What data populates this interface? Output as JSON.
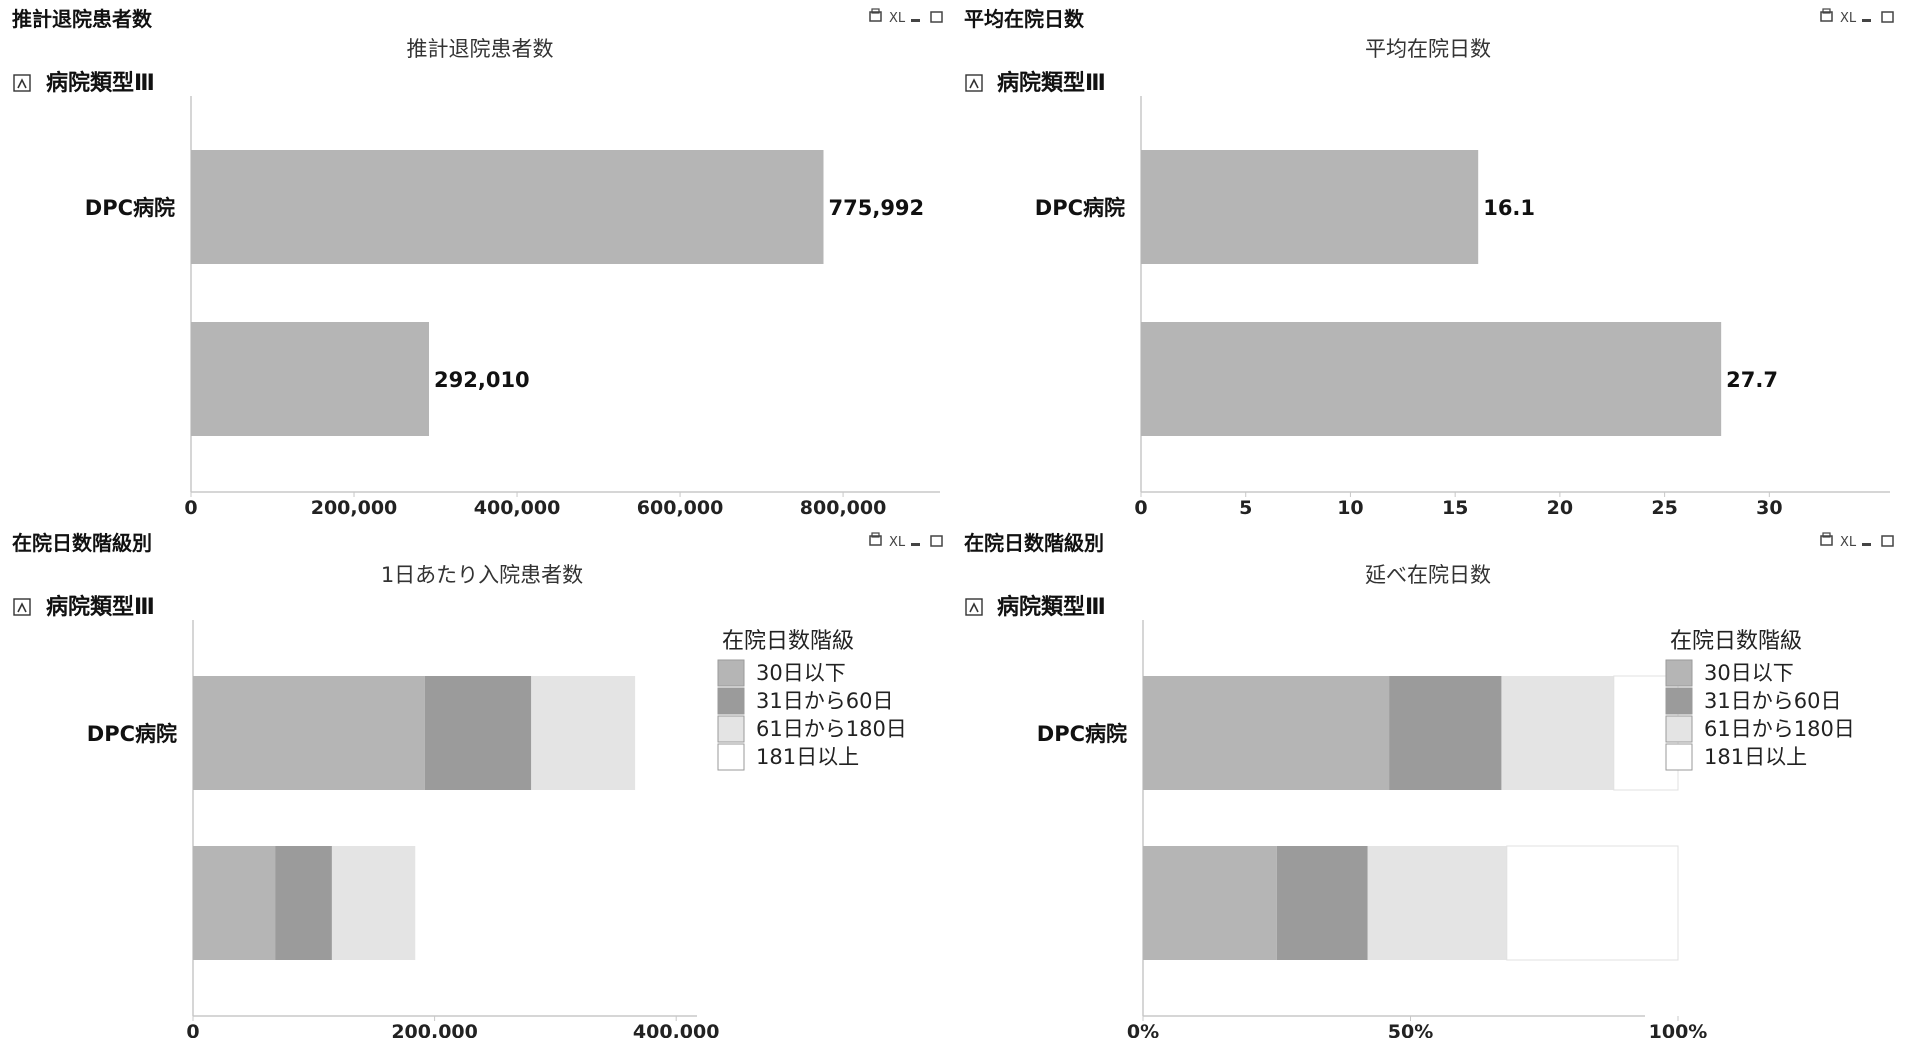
{
  "colors": {
    "bar": "#b5b5b5",
    "stack": [
      "#b5b5b5",
      "#9b9b9b",
      "#e4e4e4",
      "#ffffff"
    ],
    "axis": "#c8c8c8",
    "text": "#111111"
  },
  "panels": [
    {
      "id": "p1",
      "panel_title": "推計退院患者数",
      "chart_title": "推計退院患者数",
      "drill_label": "病院類型Ⅲ",
      "controls": [
        "XL"
      ],
      "icons": [
        "print-icon",
        "minimize-icon",
        "maximize-icon"
      ]
    },
    {
      "id": "p2",
      "panel_title": "平均在院日数",
      "chart_title": "平均在院日数",
      "drill_label": "病院類型Ⅲ",
      "controls": [
        "XL"
      ],
      "icons": [
        "print-icon",
        "minimize-icon",
        "maximize-icon"
      ]
    },
    {
      "id": "p3",
      "panel_title": "在院日数階級別",
      "chart_title": "1日あたり入院患者数",
      "drill_label": "病院類型Ⅲ",
      "controls": [
        "XL"
      ],
      "icons": [
        "print-icon",
        "minimize-icon",
        "maximize-icon"
      ]
    },
    {
      "id": "p4",
      "panel_title": "在院日数階級別",
      "chart_title": "延べ在院日数",
      "drill_label": "病院類型Ⅲ",
      "controls": [
        "XL"
      ],
      "icons": [
        "print-icon",
        "minimize-icon",
        "maximize-icon"
      ]
    }
  ],
  "chart_data": [
    {
      "type": "bar",
      "orientation": "horizontal",
      "title": "推計退院患者数",
      "categories": [
        "DPC病院",
        ""
      ],
      "values": [
        775992,
        292010
      ],
      "data_labels": [
        "775,992",
        "292,010"
      ],
      "xlim": [
        0,
        1060000
      ],
      "ticks": [
        0,
        200000,
        400000,
        600000,
        800000
      ],
      "tick_labels": [
        "0",
        "200,000",
        "400,000",
        "600,000",
        "800,000"
      ],
      "grid": false
    },
    {
      "type": "bar",
      "orientation": "horizontal",
      "title": "平均在院日数",
      "categories": [
        "DPC病院",
        ""
      ],
      "values": [
        16.1,
        27.7
      ],
      "data_labels": [
        "16.1",
        "27.7"
      ],
      "xlim": [
        0,
        36
      ],
      "ticks": [
        0,
        5,
        10,
        15,
        20,
        25,
        30
      ],
      "tick_labels": [
        "0",
        "5",
        "10",
        "15",
        "20",
        "25",
        "30"
      ],
      "grid": false
    },
    {
      "type": "bar",
      "orientation": "horizontal",
      "stacked": true,
      "title": "1日あたり入院患者数",
      "categories": [
        "DPC病院",
        ""
      ],
      "legend_title": "在院日数階級",
      "legend_position": "right",
      "series": [
        {
          "name": "30日以下",
          "values": [
            192000,
            68000
          ]
        },
        {
          "name": "31日から60日",
          "values": [
            88000,
            47000
          ]
        },
        {
          "name": "61日から180日",
          "values": [
            86000,
            69000
          ]
        },
        {
          "name": "181日以上",
          "values": [
            0,
            0
          ]
        }
      ],
      "xlim": [
        0,
        500000
      ],
      "ticks": [
        0,
        200000,
        400000
      ],
      "tick_labels": [
        "0",
        "200,000",
        "400,000"
      ],
      "grid": false
    },
    {
      "type": "bar",
      "orientation": "horizontal",
      "stacked": true,
      "title": "延べ在院日数",
      "categories": [
        "DPC病院",
        ""
      ],
      "legend_title": "在院日数階級",
      "legend_position": "right",
      "series": [
        {
          "name": "30日以下",
          "values": [
            46,
            25
          ]
        },
        {
          "name": "31日から60日",
          "values": [
            21,
            17
          ]
        },
        {
          "name": "61日から180日",
          "values": [
            21,
            26
          ]
        },
        {
          "name": "181日以上",
          "values": [
            12,
            32
          ]
        }
      ],
      "xlim": [
        0,
        120
      ],
      "ticks": [
        0,
        50,
        100
      ],
      "tick_labels": [
        "0%",
        "50%",
        "100%"
      ],
      "grid": false
    }
  ]
}
